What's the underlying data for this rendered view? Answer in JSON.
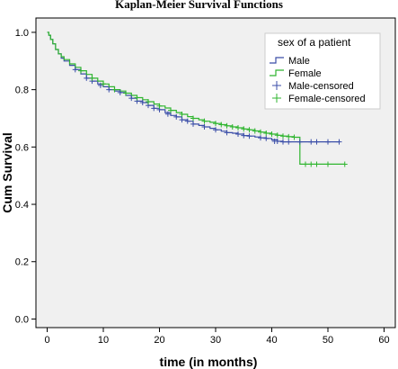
{
  "chart_data": {
    "type": "line",
    "title": "Kaplan-Meier Survival Functions",
    "xlabel": "time (in months)",
    "ylabel": "Cum Survival",
    "xlim": [
      -2,
      62
    ],
    "ylim": [
      -0.03,
      1.05
    ],
    "x_ticks": [
      0,
      10,
      20,
      30,
      40,
      50,
      60
    ],
    "y_ticks": [
      0.0,
      0.2,
      0.4,
      0.6,
      0.8,
      1.0
    ],
    "x_tick_labels": [
      "0",
      "10",
      "20",
      "30",
      "40",
      "50",
      "60"
    ],
    "y_tick_labels": [
      "0.0",
      "0.2",
      "0.4",
      "0.6",
      "0.8",
      "1.0"
    ],
    "grid": false,
    "legend": {
      "title": "sex of a patient",
      "placement": "top-right",
      "entries": [
        "Male",
        "Female",
        "Male-censored",
        "Female-censored"
      ]
    },
    "colors": {
      "male": "#3b4ea8",
      "female": "#2fb52f",
      "plot_background": "#f0f0f0"
    },
    "series": [
      {
        "name": "Male",
        "color": "#3b4ea8",
        "x": [
          0,
          0.3,
          0.6,
          1,
          1.5,
          2,
          2.5,
          3,
          4,
          5,
          6,
          7,
          8,
          9,
          10,
          11,
          12,
          13,
          14,
          15,
          16,
          17,
          18,
          19,
          20,
          21,
          22,
          23,
          24,
          25,
          26,
          27,
          28,
          29,
          30,
          31,
          32,
          33,
          34,
          35,
          36,
          37,
          38,
          39,
          40,
          41,
          42,
          43,
          44,
          45,
          52
        ],
        "y": [
          1.0,
          0.99,
          0.975,
          0.96,
          0.94,
          0.925,
          0.91,
          0.9,
          0.885,
          0.87,
          0.855,
          0.84,
          0.83,
          0.82,
          0.81,
          0.8,
          0.795,
          0.79,
          0.78,
          0.77,
          0.76,
          0.755,
          0.745,
          0.735,
          0.73,
          0.72,
          0.71,
          0.705,
          0.695,
          0.69,
          0.68,
          0.675,
          0.67,
          0.665,
          0.66,
          0.655,
          0.65,
          0.648,
          0.645,
          0.64,
          0.638,
          0.635,
          0.632,
          0.63,
          0.625,
          0.62,
          0.618,
          0.618,
          0.618,
          0.618,
          0.618
        ]
      },
      {
        "name": "Female",
        "color": "#2fb52f",
        "x": [
          0,
          0.3,
          0.6,
          1,
          1.5,
          2,
          2.5,
          3,
          4,
          5,
          6,
          7,
          8,
          9,
          10,
          11,
          12,
          13,
          14,
          15,
          16,
          17,
          18,
          19,
          20,
          21,
          22,
          23,
          24,
          25,
          26,
          27,
          28,
          29,
          30,
          31,
          32,
          33,
          34,
          35,
          36,
          37,
          38,
          39,
          40,
          41,
          42,
          43,
          44,
          44.5,
          45,
          46,
          48,
          50,
          53
        ],
        "y": [
          1.0,
          0.99,
          0.975,
          0.96,
          0.94,
          0.925,
          0.915,
          0.905,
          0.89,
          0.878,
          0.866,
          0.853,
          0.84,
          0.83,
          0.82,
          0.81,
          0.8,
          0.795,
          0.788,
          0.78,
          0.772,
          0.765,
          0.758,
          0.75,
          0.743,
          0.736,
          0.728,
          0.72,
          0.714,
          0.706,
          0.7,
          0.695,
          0.69,
          0.686,
          0.682,
          0.678,
          0.674,
          0.67,
          0.667,
          0.663,
          0.66,
          0.656,
          0.652,
          0.648,
          0.645,
          0.641,
          0.638,
          0.636,
          0.634,
          0.634,
          0.54,
          0.54,
          0.54,
          0.54,
          0.54
        ]
      }
    ],
    "censored": [
      {
        "name": "Male-censored",
        "color": "#3b4ea8",
        "x": [
          5,
          7,
          8,
          9.5,
          11,
          13,
          15,
          16,
          17,
          18,
          19,
          20,
          21.5,
          23,
          24,
          25,
          26,
          28,
          30,
          32,
          34,
          35,
          36,
          38,
          39,
          40.5,
          41,
          42,
          43,
          45,
          47,
          48,
          50,
          52
        ],
        "y": [
          0.87,
          0.84,
          0.83,
          0.815,
          0.8,
          0.79,
          0.77,
          0.76,
          0.755,
          0.745,
          0.735,
          0.73,
          0.715,
          0.705,
          0.695,
          0.69,
          0.68,
          0.67,
          0.66,
          0.65,
          0.645,
          0.64,
          0.638,
          0.632,
          0.63,
          0.62,
          0.62,
          0.618,
          0.618,
          0.618,
          0.618,
          0.618,
          0.618,
          0.618
        ]
      },
      {
        "name": "Female-censored",
        "color": "#2fb52f",
        "x": [
          6,
          8,
          10,
          12,
          14,
          16,
          18,
          20,
          22,
          24,
          26,
          28,
          30,
          31,
          32,
          33,
          34,
          35,
          36,
          37,
          38,
          39,
          40,
          41,
          42,
          43,
          44,
          46,
          47,
          48,
          50,
          53
        ],
        "y": [
          0.866,
          0.84,
          0.82,
          0.8,
          0.788,
          0.772,
          0.758,
          0.743,
          0.728,
          0.714,
          0.7,
          0.69,
          0.682,
          0.678,
          0.674,
          0.67,
          0.667,
          0.663,
          0.66,
          0.656,
          0.652,
          0.648,
          0.645,
          0.641,
          0.638,
          0.636,
          0.634,
          0.54,
          0.54,
          0.54,
          0.54,
          0.54
        ]
      }
    ]
  }
}
